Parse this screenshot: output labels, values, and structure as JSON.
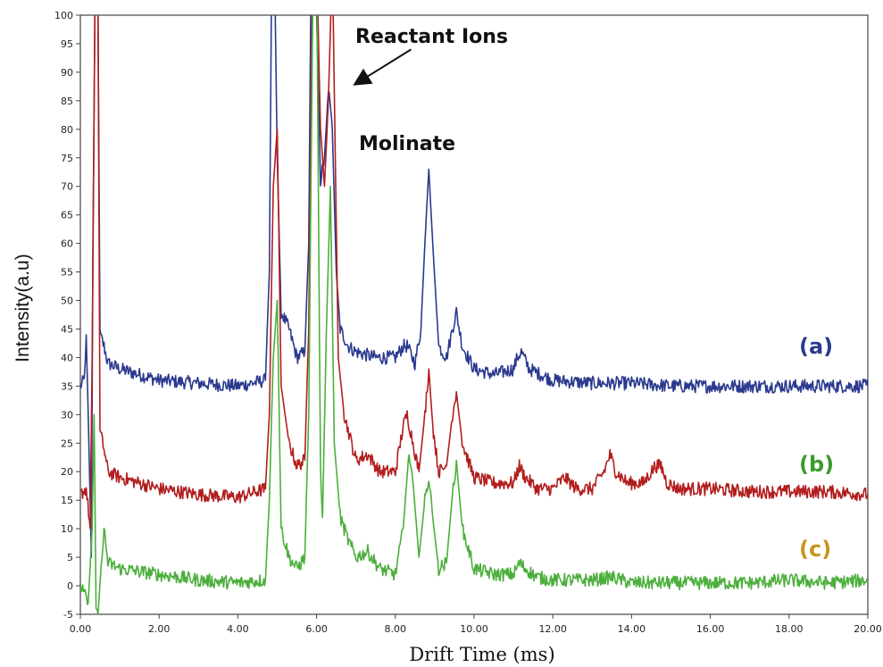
{
  "chart_data": {
    "type": "line",
    "xlabel": "Drift Time (ms)",
    "ylabel": "Intensity(a.u)",
    "xlim": [
      0,
      20
    ],
    "ylim": [
      -5,
      100
    ],
    "x_ticks": [
      "0.00",
      "2.00",
      "4.00",
      "6.00",
      "8.00",
      "10.00",
      "12.00",
      "14.00",
      "16.00",
      "18.00",
      "20.00"
    ],
    "y_ticks": [
      -5,
      0,
      5,
      10,
      15,
      20,
      25,
      30,
      35,
      40,
      45,
      50,
      55,
      60,
      65,
      70,
      75,
      80,
      85,
      90,
      95,
      100
    ],
    "annotations": [
      {
        "text": "Reactant Ions",
        "arrow_from": [
          8.4,
          94
        ],
        "arrow_to": [
          7.0,
          88
        ]
      },
      {
        "text": "Molinate"
      }
    ],
    "series": [
      {
        "label": "(a)",
        "color": "#2b3a8f",
        "label_color": "#2b3a8f",
        "points": [
          [
            0.0,
            35
          ],
          [
            0.1,
            36
          ],
          [
            0.15,
            44
          ],
          [
            0.2,
            30
          ],
          [
            0.28,
            5
          ],
          [
            0.32,
            60
          ],
          [
            0.38,
            110
          ],
          [
            0.45,
            100
          ],
          [
            0.5,
            44
          ],
          [
            0.6,
            42
          ],
          [
            0.7,
            39
          ],
          [
            1.0,
            38
          ],
          [
            1.5,
            37
          ],
          [
            2.0,
            36
          ],
          [
            3.0,
            35.5
          ],
          [
            4.0,
            35
          ],
          [
            4.7,
            36
          ],
          [
            4.8,
            55
          ],
          [
            4.85,
            100
          ],
          [
            4.9,
            110
          ],
          [
            4.95,
            100
          ],
          [
            5.0,
            75
          ],
          [
            5.1,
            48
          ],
          [
            5.3,
            45
          ],
          [
            5.5,
            40
          ],
          [
            5.7,
            41
          ],
          [
            5.8,
            60
          ],
          [
            5.85,
            100
          ],
          [
            5.9,
            110
          ],
          [
            6.0,
            100
          ],
          [
            6.1,
            71
          ],
          [
            6.2,
            75
          ],
          [
            6.3,
            87
          ],
          [
            6.4,
            80
          ],
          [
            6.5,
            55
          ],
          [
            6.6,
            45
          ],
          [
            6.8,
            42
          ],
          [
            7.0,
            41
          ],
          [
            7.5,
            40
          ],
          [
            8.0,
            40
          ],
          [
            8.2,
            42
          ],
          [
            8.3,
            42
          ],
          [
            8.5,
            39
          ],
          [
            8.65,
            45
          ],
          [
            8.75,
            60
          ],
          [
            8.85,
            73
          ],
          [
            8.95,
            60
          ],
          [
            9.1,
            42
          ],
          [
            9.3,
            40
          ],
          [
            9.45,
            45
          ],
          [
            9.55,
            48
          ],
          [
            9.7,
            42
          ],
          [
            10.0,
            38
          ],
          [
            10.5,
            37
          ],
          [
            11.0,
            38
          ],
          [
            11.1,
            40
          ],
          [
            11.2,
            41
          ],
          [
            11.4,
            38
          ],
          [
            12.0,
            36
          ],
          [
            13.0,
            35.5
          ],
          [
            14.0,
            35.5
          ],
          [
            15.0,
            35
          ],
          [
            16.0,
            35
          ],
          [
            17.0,
            35
          ],
          [
            18.0,
            35
          ],
          [
            19.0,
            35
          ],
          [
            20.0,
            35
          ]
        ]
      },
      {
        "label": "(b)",
        "color": "#b21e1e",
        "label_color": "#3c9a2e",
        "points": [
          [
            0.0,
            16
          ],
          [
            0.15,
            17
          ],
          [
            0.25,
            10
          ],
          [
            0.3,
            40
          ],
          [
            0.38,
            110
          ],
          [
            0.45,
            100
          ],
          [
            0.5,
            27
          ],
          [
            0.6,
            24
          ],
          [
            0.7,
            20
          ],
          [
            1.0,
            19
          ],
          [
            2.0,
            17
          ],
          [
            3.0,
            16
          ],
          [
            4.0,
            15.5
          ],
          [
            4.7,
            17
          ],
          [
            4.8,
            30
          ],
          [
            4.9,
            70
          ],
          [
            5.0,
            80
          ],
          [
            5.1,
            35
          ],
          [
            5.3,
            25
          ],
          [
            5.5,
            21
          ],
          [
            5.7,
            22
          ],
          [
            5.8,
            45
          ],
          [
            5.9,
            110
          ],
          [
            6.0,
            110
          ],
          [
            6.1,
            80
          ],
          [
            6.2,
            70
          ],
          [
            6.3,
            85
          ],
          [
            6.4,
            110
          ],
          [
            6.55,
            40
          ],
          [
            6.7,
            30
          ],
          [
            7.0,
            22
          ],
          [
            7.3,
            23
          ],
          [
            7.6,
            20
          ],
          [
            8.0,
            20
          ],
          [
            8.2,
            28
          ],
          [
            8.3,
            30
          ],
          [
            8.45,
            25
          ],
          [
            8.6,
            20
          ],
          [
            8.75,
            30
          ],
          [
            8.85,
            38
          ],
          [
            8.95,
            28
          ],
          [
            9.1,
            20
          ],
          [
            9.3,
            21
          ],
          [
            9.45,
            30
          ],
          [
            9.55,
            34
          ],
          [
            9.7,
            25
          ],
          [
            10.0,
            19
          ],
          [
            10.5,
            18
          ],
          [
            11.0,
            18
          ],
          [
            11.15,
            21
          ],
          [
            11.3,
            19
          ],
          [
            11.6,
            17
          ],
          [
            12.0,
            17
          ],
          [
            12.3,
            19
          ],
          [
            12.6,
            17
          ],
          [
            13.0,
            17
          ],
          [
            13.3,
            20
          ],
          [
            13.45,
            23
          ],
          [
            13.6,
            20
          ],
          [
            13.9,
            18
          ],
          [
            14.3,
            18
          ],
          [
            14.6,
            21
          ],
          [
            14.75,
            21
          ],
          [
            14.9,
            18
          ],
          [
            15.2,
            17
          ],
          [
            16.0,
            17
          ],
          [
            17.0,
            16.5
          ],
          [
            18.0,
            16.5
          ],
          [
            19.0,
            16.5
          ],
          [
            20.0,
            16
          ]
        ]
      },
      {
        "label": "(c)",
        "color": "#4caf3c",
        "label_color": "#c8961e",
        "points": [
          [
            0.0,
            0
          ],
          [
            0.2,
            -3
          ],
          [
            0.3,
            10
          ],
          [
            0.35,
            30
          ],
          [
            0.4,
            -5
          ],
          [
            0.45,
            -5
          ],
          [
            0.55,
            6
          ],
          [
            0.6,
            10
          ],
          [
            0.7,
            4
          ],
          [
            1.0,
            3
          ],
          [
            2.0,
            2
          ],
          [
            3.0,
            1
          ],
          [
            4.0,
            0.5
          ],
          [
            4.7,
            1
          ],
          [
            4.8,
            15
          ],
          [
            4.9,
            40
          ],
          [
            5.0,
            50
          ],
          [
            5.1,
            10
          ],
          [
            5.3,
            5
          ],
          [
            5.5,
            3
          ],
          [
            5.7,
            5
          ],
          [
            5.8,
            30
          ],
          [
            5.9,
            100
          ],
          [
            6.0,
            110
          ],
          [
            6.1,
            20
          ],
          [
            6.15,
            12
          ],
          [
            6.25,
            45
          ],
          [
            6.35,
            70
          ],
          [
            6.45,
            25
          ],
          [
            6.6,
            12
          ],
          [
            6.8,
            8
          ],
          [
            7.0,
            5
          ],
          [
            7.3,
            6
          ],
          [
            7.6,
            3
          ],
          [
            8.0,
            2
          ],
          [
            8.2,
            10
          ],
          [
            8.35,
            24
          ],
          [
            8.45,
            18
          ],
          [
            8.6,
            5
          ],
          [
            8.75,
            15
          ],
          [
            8.85,
            19
          ],
          [
            8.95,
            12
          ],
          [
            9.1,
            3
          ],
          [
            9.3,
            4
          ],
          [
            9.45,
            16
          ],
          [
            9.55,
            22
          ],
          [
            9.7,
            10
          ],
          [
            10.0,
            3
          ],
          [
            10.5,
            2
          ],
          [
            11.0,
            2
          ],
          [
            11.15,
            4
          ],
          [
            11.3,
            3
          ],
          [
            11.6,
            1.5
          ],
          [
            12.0,
            1
          ],
          [
            13.0,
            1
          ],
          [
            13.5,
            1.5
          ],
          [
            14.0,
            0.5
          ],
          [
            15.0,
            0.5
          ],
          [
            16.0,
            0.5
          ],
          [
            17.0,
            0.5
          ],
          [
            18.0,
            1
          ],
          [
            19.0,
            0.5
          ],
          [
            20.0,
            1
          ]
        ]
      }
    ]
  }
}
